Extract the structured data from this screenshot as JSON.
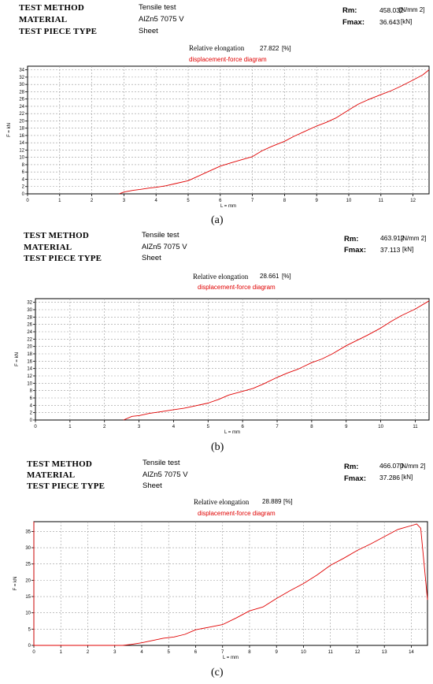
{
  "panels": [
    {
      "id": "a",
      "header": {
        "test_method_label": "TEST METHOD",
        "test_method_value": "Tensile test",
        "material_label": "MATERIAL",
        "material_value": "AlZn5 7075 V",
        "piece_label": "TEST PIECE TYPE",
        "piece_value": "Sheet"
      },
      "stats": {
        "rm_label": "Rm:",
        "rm_value": "458.032",
        "rm_unit": "[N/mm 2]",
        "fmax_label": "Fmax:",
        "fmax_value": "36.643",
        "fmax_unit": "[kN]"
      },
      "elongation": {
        "label": "Relative elongation",
        "value": "27.822",
        "unit": "[%]"
      },
      "caption": "(a)"
    },
    {
      "id": "b",
      "header": {
        "test_method_label": "TEST METHOD",
        "test_method_value": "Tensile test",
        "material_label": "MATERIAL",
        "material_value": "AlZn5 7075 V",
        "piece_label": "TEST PIECE TYPE",
        "piece_value": "Sheet"
      },
      "stats": {
        "rm_label": "Rm:",
        "rm_value": "463.912",
        "rm_unit": "[N/mm 2]",
        "fmax_label": "Fmax:",
        "fmax_value": "37.113",
        "fmax_unit": "[kN]"
      },
      "elongation": {
        "label": "Relative elongation",
        "value": "28.661",
        "unit": "[%]"
      },
      "caption": "(b)"
    },
    {
      "id": "c",
      "header": {
        "test_method_label": "TEST METHOD",
        "test_method_value": "Tensile test",
        "material_label": "MATERIAL",
        "material_value": "AlZn5 7075 V",
        "piece_label": "TEST PIECE TYPE",
        "piece_value": "Sheet"
      },
      "stats": {
        "rm_label": "Rm:",
        "rm_value": "466.070",
        "rm_unit": "[N/mm 2]",
        "fmax_label": "Fmax:",
        "fmax_value": "37.286",
        "fmax_unit": "[kN]"
      },
      "elongation": {
        "label": "Relative elongation",
        "value": "28.889",
        "unit": "[%]"
      },
      "caption": "(c)"
    }
  ],
  "chart_data": [
    {
      "type": "line",
      "title": "displacement-force diagram",
      "xlabel": "L = mm",
      "ylabel": "F = kN",
      "xlim": [
        0,
        12.5
      ],
      "ylim": [
        0,
        35
      ],
      "xticks": [
        0,
        1,
        2,
        3,
        4,
        5,
        6,
        7,
        8,
        9,
        10,
        11,
        12
      ],
      "yticks": [
        0,
        2,
        4,
        6,
        8,
        10,
        12,
        14,
        16,
        18,
        20,
        22,
        24,
        26,
        28,
        30,
        32,
        34
      ],
      "grid": true,
      "line_color": "#e00000",
      "series": [
        {
          "x": [
            2.85,
            3.0,
            3.3,
            3.5,
            3.8,
            4.0,
            4.3,
            4.6,
            5.0,
            5.3,
            5.6,
            6.0,
            6.3,
            6.6,
            7.0,
            7.3,
            7.6,
            8.0,
            8.3,
            8.6,
            9.0,
            9.3,
            9.6,
            10.0,
            10.3,
            10.6,
            11.0,
            11.3,
            11.6,
            12.0,
            12.3,
            12.5
          ],
          "y": [
            0.0,
            0.5,
            1.0,
            1.2,
            1.6,
            1.8,
            2.2,
            2.8,
            3.6,
            4.8,
            6.0,
            7.6,
            8.4,
            9.2,
            10.2,
            11.8,
            13.0,
            14.4,
            15.8,
            17.0,
            18.6,
            19.6,
            20.8,
            23.0,
            24.6,
            25.8,
            27.2,
            28.2,
            29.4,
            31.2,
            32.6,
            34.0
          ]
        }
      ]
    },
    {
      "type": "line",
      "title": "displacement-force diagram",
      "xlabel": "L = mm",
      "ylabel": "F = kN",
      "xlim": [
        0,
        11.4
      ],
      "ylim": [
        0,
        33
      ],
      "xticks": [
        0,
        1,
        2,
        3,
        4,
        5,
        6,
        7,
        8,
        9,
        10,
        11
      ],
      "yticks": [
        0,
        2,
        4,
        6,
        8,
        10,
        12,
        14,
        16,
        18,
        20,
        22,
        24,
        26,
        28,
        30,
        32
      ],
      "grid": true,
      "line_color": "#e00000",
      "series": [
        {
          "x": [
            2.55,
            2.8,
            3.0,
            3.3,
            3.6,
            4.0,
            4.3,
            4.6,
            5.0,
            5.3,
            5.6,
            6.0,
            6.3,
            6.6,
            7.0,
            7.3,
            7.6,
            8.0,
            8.3,
            8.6,
            9.0,
            9.3,
            9.6,
            10.0,
            10.3,
            10.6,
            11.0,
            11.4
          ],
          "y": [
            0.0,
            1.0,
            1.2,
            1.8,
            2.2,
            2.8,
            3.2,
            3.8,
            4.6,
            5.6,
            6.8,
            7.8,
            8.6,
            9.8,
            11.6,
            12.8,
            13.8,
            15.6,
            16.6,
            18.0,
            20.2,
            21.6,
            23.0,
            25.0,
            26.8,
            28.4,
            30.2,
            32.4
          ]
        }
      ]
    },
    {
      "type": "line",
      "title": "displacement-force diagram",
      "xlabel": "L = mm",
      "ylabel": "F = kN",
      "xlim": [
        0,
        14.6
      ],
      "ylim": [
        0,
        38
      ],
      "xticks": [
        0,
        1,
        2,
        3,
        4,
        5,
        6,
        7,
        8,
        9,
        10,
        11,
        12,
        13,
        14
      ],
      "yticks": [
        0,
        5,
        10,
        15,
        20,
        25,
        30,
        35
      ],
      "grid": true,
      "line_color": "#e00000",
      "series": [
        {
          "x": [
            0.0,
            0.0,
            0.0,
            0.05,
            3.3,
            3.6,
            4.0,
            4.4,
            4.8,
            5.2,
            5.6,
            6.0,
            6.5,
            7.0,
            7.5,
            8.0,
            8.5,
            9.0,
            9.5,
            10.0,
            10.5,
            11.0,
            11.5,
            12.0,
            12.5,
            13.0,
            13.5,
            14.0,
            14.2,
            14.35,
            14.6
          ],
          "y": [
            38.0,
            35.0,
            0.0,
            0.0,
            0.0,
            0.3,
            0.8,
            1.5,
            2.2,
            2.6,
            3.4,
            4.8,
            5.6,
            6.4,
            8.4,
            10.6,
            11.8,
            14.4,
            16.8,
            19.0,
            21.6,
            24.6,
            26.8,
            29.2,
            31.2,
            33.4,
            35.6,
            36.8,
            37.3,
            36.0,
            14.0
          ]
        }
      ]
    }
  ]
}
